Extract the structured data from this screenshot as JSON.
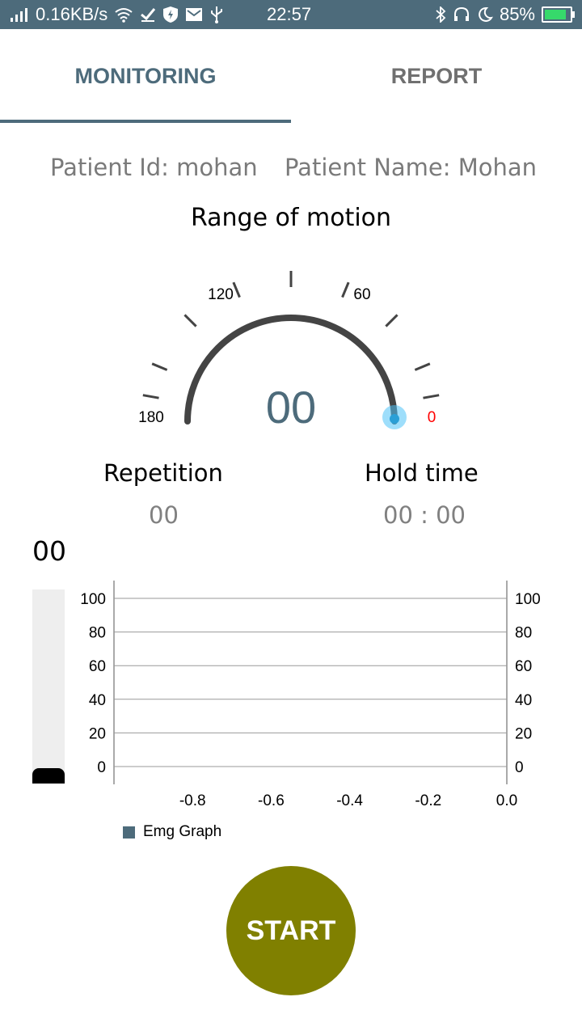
{
  "status_bar": {
    "net_speed": "0.16KB/s",
    "time": "22:57",
    "battery_percent": "85%",
    "battery_level": 0.85
  },
  "tabs": [
    {
      "label": "MONITORING",
      "active": true
    },
    {
      "label": "REPORT",
      "active": false
    }
  ],
  "patient": {
    "id_text": "Patient Id: mohan",
    "name_text": "Patient Name: Mohan"
  },
  "range_of_motion": {
    "title": "Range of motion",
    "value": "00",
    "tick_labels": {
      "t180": "180",
      "t120": "120",
      "t60": "60",
      "t0": "0"
    },
    "current_angle": 0
  },
  "stats": {
    "repetition_label": "Repetition",
    "repetition_value": "00",
    "hold_label": "Hold time",
    "hold_value": "00 : 00"
  },
  "emg": {
    "value": "00",
    "level": 0.08
  },
  "chart_data": {
    "type": "line",
    "title": "",
    "x": [],
    "series": [
      {
        "name": "Emg Graph",
        "values": []
      }
    ],
    "xticks": [
      "-0.8",
      "-0.6",
      "-0.4",
      "-0.2",
      "0.0"
    ],
    "yticks": [
      "100",
      "80",
      "60",
      "40",
      "20",
      "0"
    ],
    "xlim": [
      -1.0,
      0.0
    ],
    "ylim": [
      0,
      100
    ],
    "grid": true,
    "legend": "bottom-left"
  },
  "colors": {
    "accent": "#4d6b7b",
    "start_button": "#808000",
    "zero_label": "#ff0000",
    "gauge_arc": "#444444",
    "indicator": "#4fc3f7"
  },
  "start_button": {
    "label": "START"
  }
}
